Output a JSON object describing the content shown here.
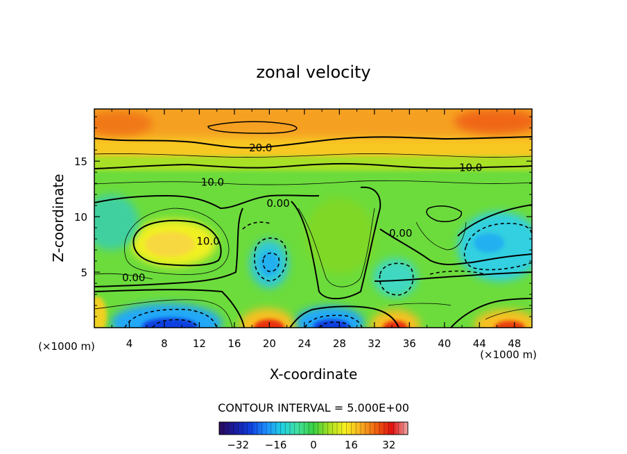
{
  "chart_data": {
    "type": "heatmap",
    "title": "zonal velocity",
    "xlabel": "X-coordinate",
    "ylabel": "Z-coordinate",
    "x_unit_left": "(×1000 m)",
    "x_unit_right": "(×1000 m)",
    "xlim": [
      0,
      50
    ],
    "ylim": [
      0,
      19.7
    ],
    "x_ticks": [
      4,
      8,
      12,
      16,
      20,
      24,
      28,
      32,
      36,
      40,
      44,
      48
    ],
    "x_tick_labels": [
      "4",
      "8",
      "12",
      "16",
      "20",
      "24",
      "28",
      "32",
      "36",
      "40",
      "44",
      "48"
    ],
    "y_ticks": [
      5,
      10,
      15
    ],
    "y_tick_labels": [
      "5",
      "10",
      "15"
    ],
    "contour_interval_label": "CONTOUR INTERVAL = 5.000E+00",
    "contour_interval": 5.0,
    "contour_labels": [
      {
        "text": "20.0",
        "x": 19,
        "z": 16.2
      },
      {
        "text": "10.0",
        "x": 43,
        "z": 14.4
      },
      {
        "text": "10.0",
        "x": 13.5,
        "z": 13.1
      },
      {
        "text": "0.00",
        "x": 21,
        "z": 11.2
      },
      {
        "text": "0.00",
        "x": 35,
        "z": 8.5
      },
      {
        "text": "10.0",
        "x": 13,
        "z": 7.8
      },
      {
        "text": "0.00",
        "x": 4.5,
        "z": 4.5
      }
    ],
    "colorbar": {
      "min": -40,
      "max": 40,
      "ticks": [
        -32,
        -16,
        0,
        16,
        32
      ],
      "tick_labels": [
        "−32",
        "−16",
        "0",
        "16",
        "32"
      ],
      "colors": [
        "#2b0a5a",
        "#1a1aa0",
        "#1040e0",
        "#1e90ff",
        "#20d0e0",
        "#40e0a0",
        "#38d040",
        "#a8e020",
        "#f8f020",
        "#f8b020",
        "#f06010",
        "#e01010",
        "#f0a8a8"
      ]
    },
    "features": [
      {
        "type": "band",
        "z_range": [
          14.5,
          19.7
        ],
        "max_value": 30,
        "note": "strong positive jet aloft"
      },
      {
        "type": "max",
        "x": 9,
        "z": 7.5,
        "value": 12
      },
      {
        "type": "min",
        "x": 20,
        "z": 5.8,
        "value": -10
      },
      {
        "type": "min",
        "x": 34,
        "z": 4.5,
        "value": -8
      },
      {
        "type": "min",
        "x": 46,
        "z": 7.5,
        "value": -10
      },
      {
        "type": "min",
        "x": 9,
        "z": 0.5,
        "value": -25
      },
      {
        "type": "min",
        "x": 27,
        "z": 0.5,
        "value": -25
      },
      {
        "type": "max",
        "x": 20,
        "z": 0.3,
        "value": 30
      },
      {
        "type": "max",
        "x": 34,
        "z": 0.3,
        "value": 30
      },
      {
        "type": "max",
        "x": 48,
        "z": 0.3,
        "value": 28
      }
    ]
  }
}
